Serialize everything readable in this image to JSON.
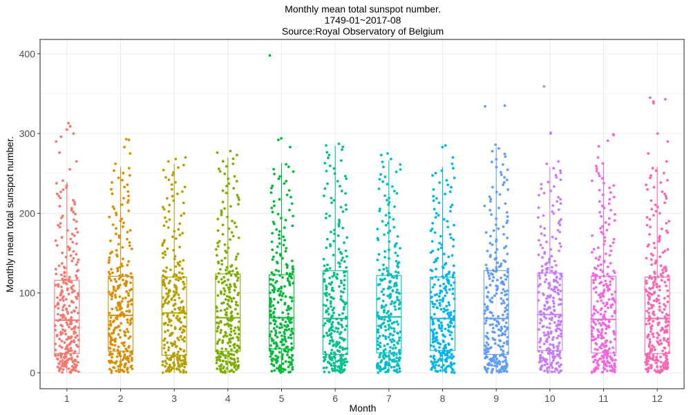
{
  "chart_data": {
    "type": "box",
    "title": [
      "Monthly mean total sunspot number.",
      "1749-01~2017-08",
      "Source:Royal Observatory of Belgium"
    ],
    "xlabel": "Month",
    "ylabel": "Monthly mean total sunspot number.",
    "categories": [
      "1",
      "2",
      "3",
      "4",
      "5",
      "6",
      "7",
      "8",
      "9",
      "10",
      "11",
      "12"
    ],
    "ylim": [
      -20,
      418
    ],
    "yticks": [
      0,
      100,
      200,
      300,
      400
    ],
    "grid": true,
    "legend": "none",
    "jittered_points": true,
    "points_per_month": 269,
    "colors": [
      "#F8766D",
      "#DE8C00",
      "#B79F00",
      "#7CAE00",
      "#00BA38",
      "#00C08B",
      "#00BFC4",
      "#00B4F0",
      "#619CFF",
      "#C77CFF",
      "#F564E3",
      "#FF64B0"
    ],
    "boxes": [
      {
        "month": "1",
        "q1": 24,
        "median": 66,
        "q3": 116,
        "whisker_low": 0,
        "whisker_high": 239,
        "outliers": [
          241,
          255,
          265,
          276,
          290,
          296,
          300,
          305,
          309,
          313
        ]
      },
      {
        "month": "2",
        "q1": 27,
        "median": 72,
        "q3": 121,
        "whisker_low": 0,
        "whisker_high": 258,
        "outliers": [
          262,
          275,
          283,
          292,
          293
        ]
      },
      {
        "month": "3",
        "q1": 22,
        "median": 75,
        "q3": 120,
        "whisker_low": 0,
        "whisker_high": 262,
        "outliers": [
          265,
          268,
          270
        ]
      },
      {
        "month": "4",
        "q1": 27,
        "median": 69,
        "q3": 124,
        "whisker_low": 0,
        "whisker_high": 270,
        "outliers": [
          273,
          276,
          278
        ]
      },
      {
        "month": "5",
        "q1": 30,
        "median": 69,
        "q3": 123,
        "whisker_low": 0,
        "whisker_high": 263,
        "outliers": [
          283,
          292,
          294,
          398
        ]
      },
      {
        "month": "6",
        "q1": 23,
        "median": 68,
        "q3": 128,
        "whisker_low": 0,
        "whisker_high": 285,
        "outliers": [
          285,
          287
        ]
      },
      {
        "month": "7",
        "q1": 25,
        "median": 70,
        "q3": 122,
        "whisker_low": 0,
        "whisker_high": 266,
        "outliers": [
          268,
          273,
          275
        ]
      },
      {
        "month": "8",
        "q1": 28,
        "median": 68,
        "q3": 120,
        "whisker_low": 0,
        "whisker_high": 258,
        "outliers": [
          262,
          270,
          283,
          285
        ]
      },
      {
        "month": "9",
        "q1": 23,
        "median": 68,
        "q3": 128,
        "whisker_low": 0,
        "whisker_high": 283,
        "outliers": [
          286,
          334,
          335
        ]
      },
      {
        "month": "10",
        "q1": 28,
        "median": 73,
        "q3": 125,
        "whisker_low": 0,
        "whisker_high": 258,
        "outliers": [
          262,
          265,
          300,
          301,
          359
        ]
      },
      {
        "month": "11",
        "q1": 25,
        "median": 67,
        "q3": 121,
        "whisker_low": 0,
        "whisker_high": 264,
        "outliers": [
          270,
          284,
          291,
          298,
          299
        ]
      },
      {
        "month": "12",
        "q1": 24,
        "median": 68,
        "q3": 120,
        "whisker_low": 0,
        "whisker_high": 258,
        "outliers": [
          265,
          275,
          290,
          300,
          338,
          340,
          343,
          345
        ]
      }
    ]
  }
}
